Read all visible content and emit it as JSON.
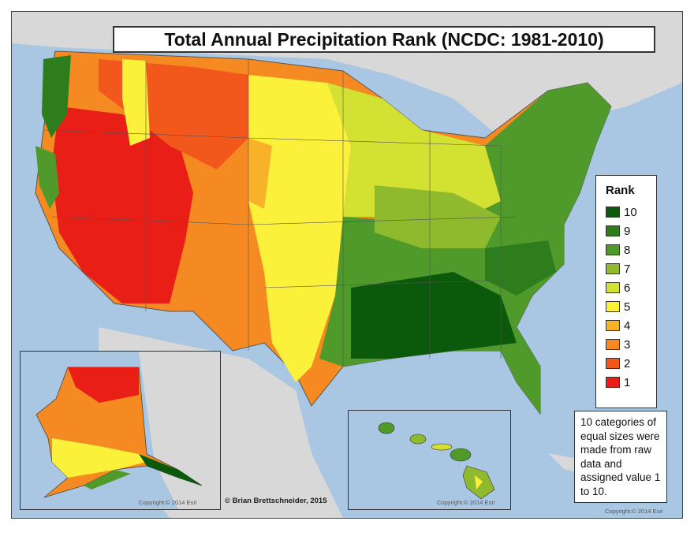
{
  "title": "Total Annual Precipitation Rank (NCDC: 1981-2010)",
  "legend": {
    "title": "Rank",
    "items": [
      {
        "label": "10",
        "color": "#0b5a0b"
      },
      {
        "label": "9",
        "color": "#2e7d1d"
      },
      {
        "label": "8",
        "color": "#4f9a2a"
      },
      {
        "label": "7",
        "color": "#8fba2e"
      },
      {
        "label": "6",
        "color": "#d3e232"
      },
      {
        "label": "5",
        "color": "#fbf03a"
      },
      {
        "label": "4",
        "color": "#f8b22a"
      },
      {
        "label": "3",
        "color": "#f58a22"
      },
      {
        "label": "2",
        "color": "#f2581c"
      },
      {
        "label": "1",
        "color": "#e81e17"
      }
    ]
  },
  "note": "10 categories of equal sizes were made from raw data and assigned value 1 to 10.",
  "credit": "© Brian Brettschneider, 2015",
  "copyright": {
    "alaska": "Copyright:© 2014 Esri",
    "hawaii": "Copyright:© 2014 Esri",
    "main": "Copyright:© 2014 Esri"
  },
  "colors": {
    "ocean": "#a9c7e2",
    "land_outside": "#d8d8d8"
  }
}
